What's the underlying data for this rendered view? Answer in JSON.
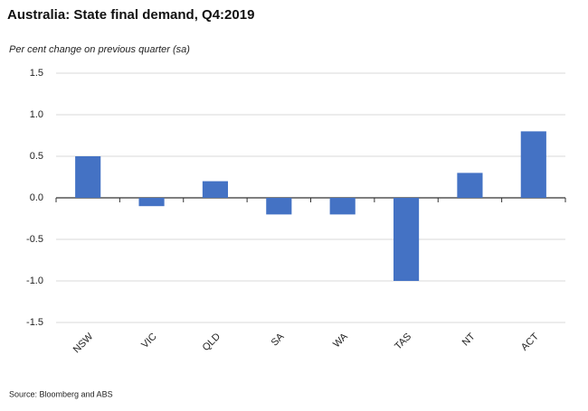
{
  "chart_data": {
    "type": "bar",
    "title": "Australia: State final demand, Q4:2019",
    "subtitle": "Per cent change on previous quarter (sa)",
    "source": "Source: Bloomberg and ABS",
    "categories": [
      "NSW",
      "VIC",
      "QLD",
      "SA",
      "WA",
      "TAS",
      "NT",
      "ACT"
    ],
    "values": [
      0.5,
      -0.1,
      0.2,
      -0.2,
      -0.2,
      -1.0,
      0.3,
      0.8
    ],
    "color": "#4472c4",
    "ylim": [
      -1.5,
      1.5
    ],
    "yticks": [
      1.5,
      {
        "value": 1.0,
        "label": "1.0"
      },
      0.5,
      {
        "value": 0.0,
        "label": "0.0"
      },
      -0.5,
      {
        "value": -1.0,
        "label": "-1.0"
      },
      -1.5
    ],
    "grid": true
  }
}
